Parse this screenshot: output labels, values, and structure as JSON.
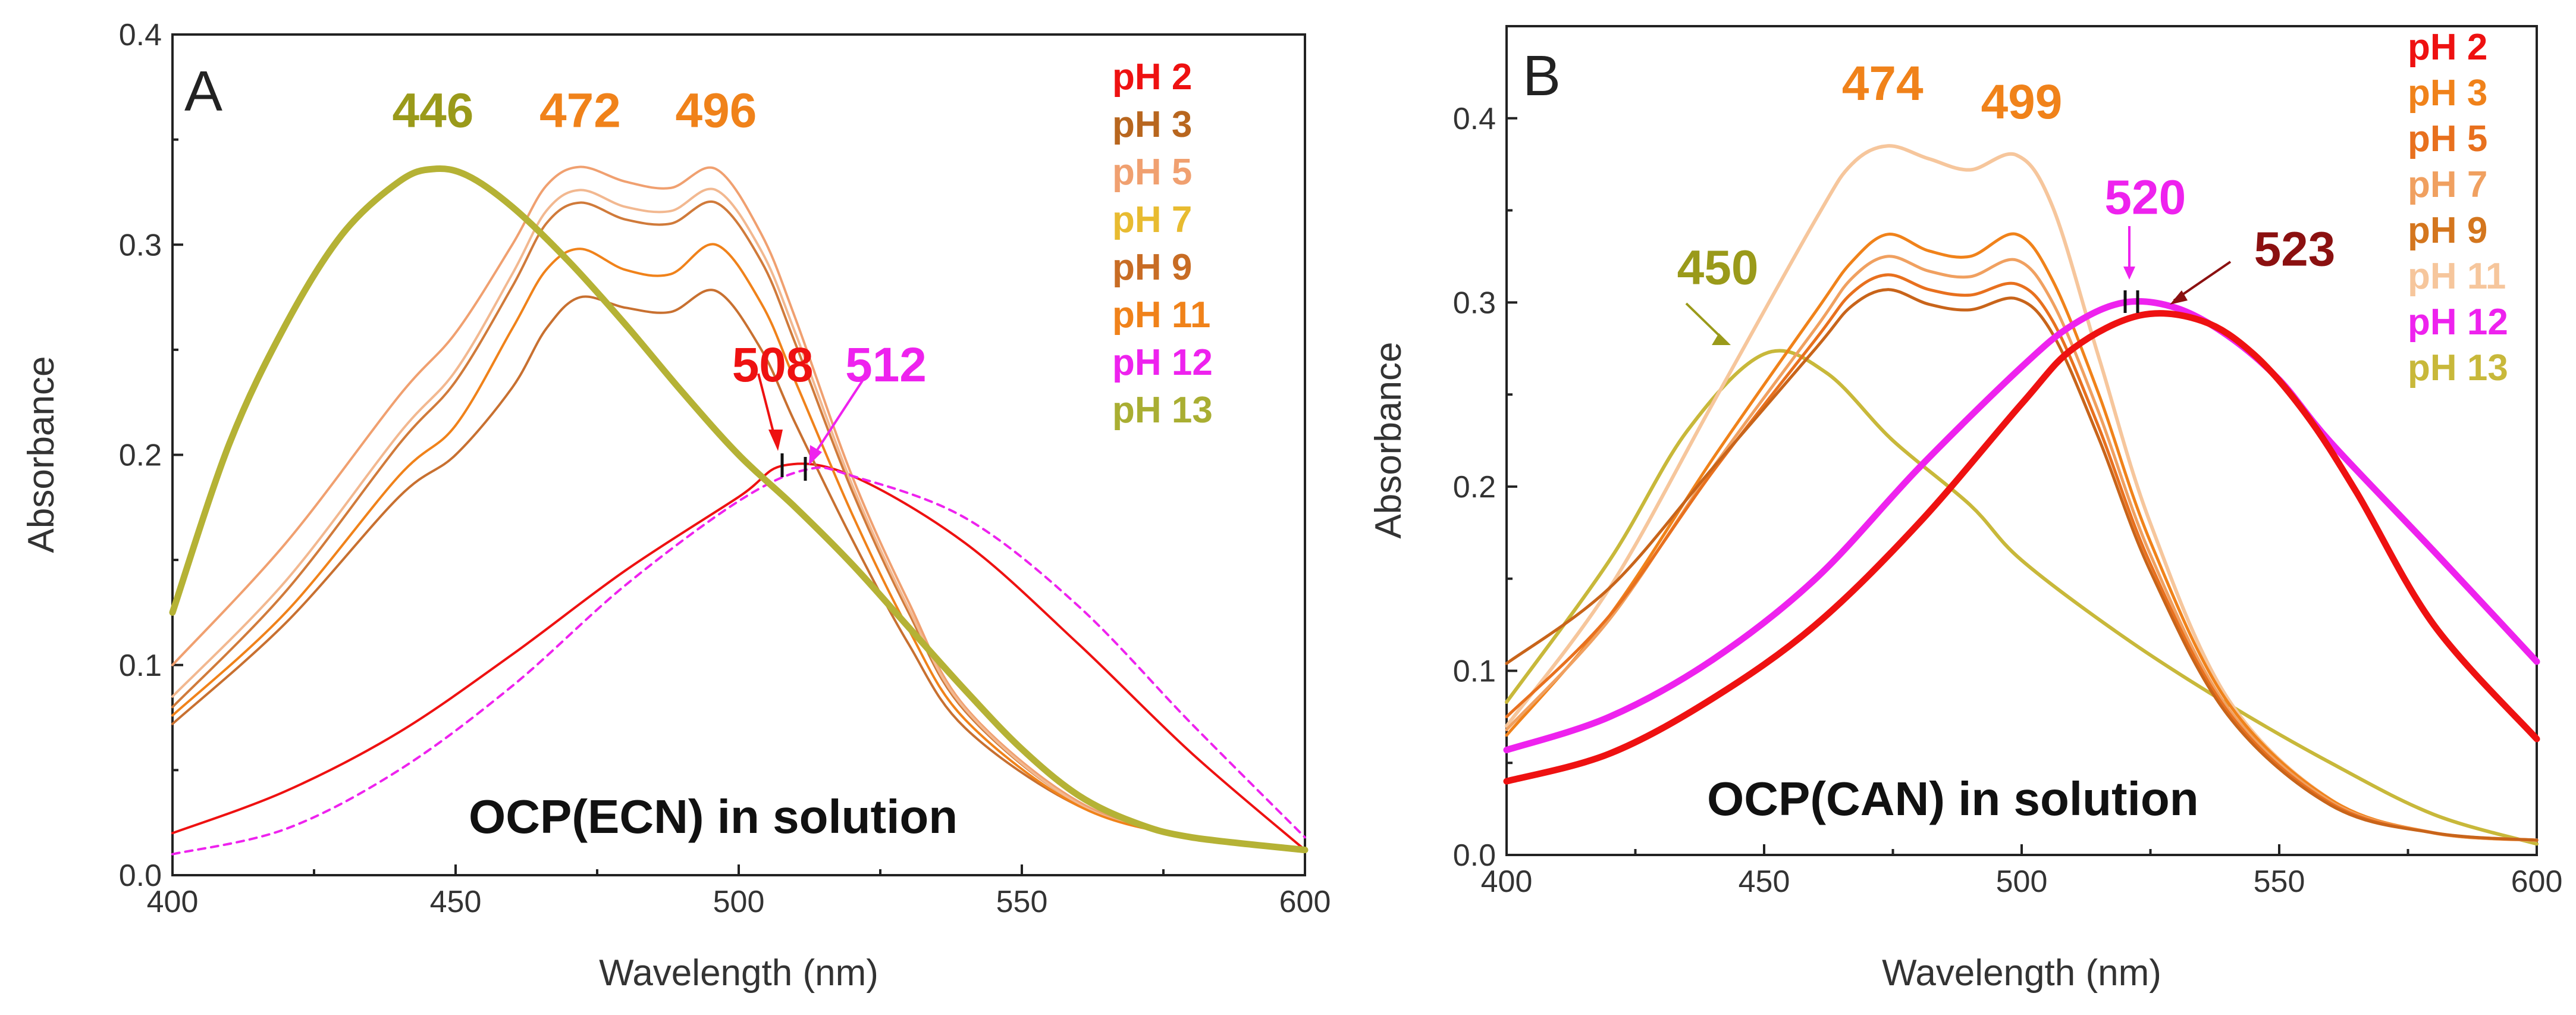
{
  "chart_data": [
    {
      "type": "line",
      "panel_label": "A",
      "caption": "OCP(ECN) in solution",
      "xlabel": "Wavelength (nm)",
      "ylabel": "Absorbance",
      "xlim": [
        400,
        600
      ],
      "ylim": [
        0,
        0.4
      ],
      "x_ticks": [
        "400",
        "450",
        "500",
        "550",
        "600"
      ],
      "y_ticks": [
        "0.0",
        "0.1",
        "0.2",
        "0.3",
        "0.4"
      ],
      "legend": [
        {
          "label": "pH 2",
          "color": "#ee1111"
        },
        {
          "label": "pH 3",
          "color": "#b8661e"
        },
        {
          "label": "pH 5",
          "color": "#f0a070"
        },
        {
          "label": "pH 7",
          "color": "#e8bb30"
        },
        {
          "label": "pH 9",
          "color": "#c86c24"
        },
        {
          "label": "pH 11",
          "color": "#f0821a"
        },
        {
          "label": "pH 12",
          "color": "#ee22ee"
        },
        {
          "label": "pH 13",
          "color": "#a9ae32"
        }
      ],
      "peak_labels": [
        {
          "text": "446",
          "color": "#9a9a1a",
          "x": 446,
          "y": 0.356
        },
        {
          "text": "472",
          "color": "#f0821a",
          "x": 472,
          "y": 0.356
        },
        {
          "text": "496",
          "color": "#f0821a",
          "x": 496,
          "y": 0.356
        },
        {
          "text": "508",
          "color": "#ee1111",
          "x": 506,
          "y": 0.235
        },
        {
          "text": "512",
          "color": "#ee22ee",
          "x": 526,
          "y": 0.235
        }
      ],
      "series": [
        {
          "name": "pH 2",
          "color": "#ee1111",
          "width": 4,
          "dash": "",
          "x": [
            400,
            420,
            440,
            460,
            480,
            500,
            508,
            520,
            540,
            560,
            580,
            600
          ],
          "y": [
            0.02,
            0.04,
            0.068,
            0.105,
            0.145,
            0.18,
            0.195,
            0.19,
            0.158,
            0.11,
            0.058,
            0.012
          ]
        },
        {
          "name": "pH 3",
          "color": "#c87030",
          "width": 4,
          "dash": "",
          "x": [
            400,
            420,
            440,
            450,
            460,
            466,
            472,
            480,
            488,
            496,
            504,
            510,
            520,
            530,
            540,
            560,
            580,
            600
          ],
          "y": [
            0.072,
            0.12,
            0.18,
            0.2,
            0.232,
            0.26,
            0.275,
            0.27,
            0.268,
            0.278,
            0.25,
            0.215,
            0.16,
            0.11,
            0.07,
            0.033,
            0.018,
            0.012
          ]
        },
        {
          "name": "pH 5",
          "color": "#f0a070",
          "width": 4,
          "dash": "",
          "x": [
            400,
            420,
            440,
            450,
            460,
            466,
            472,
            480,
            488,
            496,
            504,
            510,
            520,
            530,
            540,
            560,
            580,
            600
          ],
          "y": [
            0.1,
            0.158,
            0.228,
            0.258,
            0.3,
            0.328,
            0.337,
            0.33,
            0.327,
            0.336,
            0.305,
            0.265,
            0.19,
            0.13,
            0.08,
            0.035,
            0.018,
            0.012
          ]
        },
        {
          "name": "pH 9",
          "color": "#d07a3a",
          "width": 4,
          "dash": "",
          "x": [
            400,
            420,
            440,
            450,
            460,
            466,
            472,
            480,
            488,
            496,
            504,
            510,
            520,
            530,
            540,
            560,
            580,
            600
          ],
          "y": [
            0.08,
            0.135,
            0.205,
            0.235,
            0.28,
            0.31,
            0.32,
            0.312,
            0.31,
            0.32,
            0.292,
            0.253,
            0.183,
            0.125,
            0.078,
            0.034,
            0.018,
            0.012
          ]
        },
        {
          "name": "pH 7",
          "color": "#f2b890",
          "width": 4,
          "dash": "",
          "x": [
            400,
            420,
            440,
            450,
            460,
            466,
            472,
            480,
            488,
            496,
            504,
            510,
            520,
            530,
            540,
            560,
            580,
            600
          ],
          "y": [
            0.085,
            0.14,
            0.21,
            0.24,
            0.286,
            0.316,
            0.326,
            0.318,
            0.316,
            0.326,
            0.297,
            0.258,
            0.186,
            0.127,
            0.079,
            0.034,
            0.018,
            0.012
          ]
        },
        {
          "name": "pH 11",
          "color": "#f0821a",
          "width": 4,
          "dash": "",
          "x": [
            400,
            420,
            440,
            450,
            460,
            466,
            472,
            480,
            488,
            496,
            504,
            510,
            520,
            530,
            540,
            560,
            580,
            600
          ],
          "y": [
            0.076,
            0.125,
            0.19,
            0.214,
            0.26,
            0.288,
            0.298,
            0.288,
            0.286,
            0.3,
            0.272,
            0.235,
            0.172,
            0.117,
            0.074,
            0.033,
            0.018,
            0.012
          ]
        },
        {
          "name": "pH 12",
          "color": "#ee22ee",
          "width": 4,
          "dash": "12 10",
          "x": [
            400,
            420,
            440,
            460,
            480,
            500,
            512,
            520,
            540,
            560,
            580,
            600
          ],
          "y": [
            0.01,
            0.022,
            0.05,
            0.09,
            0.138,
            0.178,
            0.193,
            0.19,
            0.17,
            0.128,
            0.072,
            0.018
          ]
        },
        {
          "name": "pH 13",
          "color": "#b5b235",
          "width": 11,
          "dash": "",
          "x": [
            400,
            410,
            420,
            430,
            440,
            446,
            452,
            460,
            470,
            480,
            490,
            500,
            510,
            520,
            530,
            540,
            550,
            560,
            570,
            580,
            600
          ],
          "y": [
            0.125,
            0.205,
            0.262,
            0.305,
            0.33,
            0.336,
            0.333,
            0.318,
            0.292,
            0.262,
            0.23,
            0.2,
            0.175,
            0.148,
            0.118,
            0.088,
            0.06,
            0.038,
            0.025,
            0.018,
            0.012
          ]
        }
      ]
    },
    {
      "type": "line",
      "panel_label": "B",
      "caption": "OCP(CAN) in solution",
      "xlabel": "Wavelength (nm)",
      "ylabel": "Absorbance",
      "xlim": [
        400,
        600
      ],
      "ylim": [
        0,
        0.45
      ],
      "x_ticks": [
        "400",
        "450",
        "500",
        "550",
        "600"
      ],
      "y_ticks": [
        "0.0",
        "0.1",
        "0.2",
        "0.3",
        "0.4"
      ],
      "legend": [
        {
          "label": "pH 2",
          "color": "#ee1111"
        },
        {
          "label": "pH 3",
          "color": "#f0821a"
        },
        {
          "label": "pH 5",
          "color": "#e8701e"
        },
        {
          "label": "pH 7",
          "color": "#f0a060"
        },
        {
          "label": "pH 9",
          "color": "#d4761e"
        },
        {
          "label": "pH 11",
          "color": "#f6c69c"
        },
        {
          "label": "pH 12",
          "color": "#ee22ee"
        },
        {
          "label": "pH 13",
          "color": "#c8b83a"
        }
      ],
      "peak_labels": [
        {
          "text": "474",
          "color": "#f0821a",
          "x": 473,
          "y": 0.41
        },
        {
          "text": "499",
          "color": "#f0821a",
          "x": 500,
          "y": 0.4
        },
        {
          "text": "450",
          "color": "#9a9a1a",
          "x": 441,
          "y": 0.31
        },
        {
          "text": "520",
          "color": "#ee22ee",
          "x": 524,
          "y": 0.348
        },
        {
          "text": "523",
          "color": "#8b1010",
          "x": 553,
          "y": 0.32
        }
      ],
      "series": [
        {
          "name": "pH 13",
          "color": "#c8b83a",
          "width": 6,
          "dash": "",
          "x": [
            400,
            420,
            435,
            450,
            462,
            475,
            490,
            500,
            520,
            540,
            560,
            580,
            600
          ],
          "y": [
            0.083,
            0.16,
            0.23,
            0.272,
            0.262,
            0.225,
            0.19,
            0.16,
            0.118,
            0.082,
            0.05,
            0.022,
            0.006
          ]
        },
        {
          "name": "pH 11",
          "color": "#f6c69c",
          "width": 6,
          "dash": "",
          "x": [
            400,
            420,
            440,
            460,
            467,
            474,
            482,
            490,
            499,
            506,
            515,
            525,
            540,
            560,
            580,
            600
          ],
          "y": [
            0.07,
            0.145,
            0.245,
            0.345,
            0.375,
            0.385,
            0.378,
            0.372,
            0.38,
            0.352,
            0.27,
            0.18,
            0.085,
            0.03,
            0.012,
            0.008
          ]
        },
        {
          "name": "pH 3",
          "color": "#f0821a",
          "width": 5,
          "dash": "",
          "x": [
            400,
            420,
            440,
            460,
            467,
            474,
            482,
            490,
            499,
            506,
            515,
            525,
            540,
            560,
            580,
            600
          ],
          "y": [
            0.065,
            0.13,
            0.215,
            0.295,
            0.322,
            0.337,
            0.328,
            0.325,
            0.337,
            0.312,
            0.25,
            0.17,
            0.083,
            0.03,
            0.012,
            0.008
          ]
        },
        {
          "name": "pH 7",
          "color": "#f0a060",
          "width": 5,
          "dash": "",
          "x": [
            400,
            420,
            440,
            460,
            467,
            474,
            482,
            490,
            499,
            506,
            515,
            525,
            540,
            560,
            580,
            600
          ],
          "y": [
            0.068,
            0.128,
            0.21,
            0.286,
            0.313,
            0.325,
            0.317,
            0.314,
            0.323,
            0.3,
            0.24,
            0.163,
            0.08,
            0.029,
            0.012,
            0.008
          ]
        },
        {
          "name": "pH 5",
          "color": "#e8701e",
          "width": 5,
          "dash": "",
          "x": [
            400,
            420,
            440,
            460,
            467,
            474,
            482,
            490,
            499,
            506,
            515,
            525,
            540,
            560,
            580,
            600
          ],
          "y": [
            0.075,
            0.13,
            0.208,
            0.28,
            0.305,
            0.315,
            0.307,
            0.304,
            0.31,
            0.29,
            0.232,
            0.158,
            0.078,
            0.028,
            0.012,
            0.008
          ]
        },
        {
          "name": "pH 9",
          "color": "#c8641a",
          "width": 5,
          "dash": "",
          "x": [
            400,
            420,
            440,
            460,
            467,
            474,
            482,
            490,
            499,
            506,
            515,
            525,
            540,
            560,
            580,
            600
          ],
          "y": [
            0.104,
            0.145,
            0.21,
            0.275,
            0.298,
            0.307,
            0.299,
            0.296,
            0.302,
            0.283,
            0.226,
            0.154,
            0.076,
            0.027,
            0.012,
            0.008
          ]
        },
        {
          "name": "pH 12",
          "color": "#ee22ee",
          "width": 11,
          "dash": "",
          "x": [
            400,
            420,
            440,
            460,
            480,
            500,
            510,
            520,
            530,
            540,
            550,
            560,
            580,
            600
          ],
          "y": [
            0.057,
            0.075,
            0.106,
            0.15,
            0.21,
            0.265,
            0.288,
            0.3,
            0.297,
            0.282,
            0.258,
            0.224,
            0.165,
            0.105
          ]
        },
        {
          "name": "pH 2",
          "color": "#ee1111",
          "width": 11,
          "dash": "",
          "x": [
            400,
            420,
            440,
            460,
            480,
            500,
            510,
            523,
            535,
            545,
            555,
            565,
            580,
            600
          ],
          "y": [
            0.04,
            0.055,
            0.085,
            0.125,
            0.18,
            0.245,
            0.275,
            0.293,
            0.29,
            0.272,
            0.24,
            0.197,
            0.125,
            0.063
          ]
        }
      ]
    }
  ]
}
